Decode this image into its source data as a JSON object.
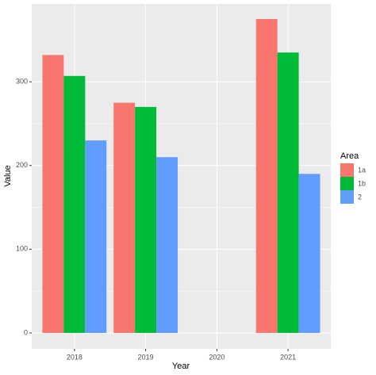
{
  "chart_data": {
    "type": "bar",
    "x_label": "Year",
    "y_label": "Value",
    "categories": [
      "2018",
      "2019",
      "2020",
      "2021"
    ],
    "legend_title": "Area",
    "legend_position": "right",
    "series": [
      {
        "name": "1a",
        "color": "#F8766D",
        "values": [
          332,
          275,
          null,
          375
        ]
      },
      {
        "name": "1b",
        "color": "#00BA38",
        "values": [
          307,
          270,
          null,
          335
        ]
      },
      {
        "name": "2",
        "color": "#619CFF",
        "values": [
          230,
          210,
          null,
          190
        ]
      }
    ],
    "ylim": [
      -19,
      393
    ],
    "yticks": [
      0,
      100,
      200,
      300
    ],
    "grid": true
  }
}
